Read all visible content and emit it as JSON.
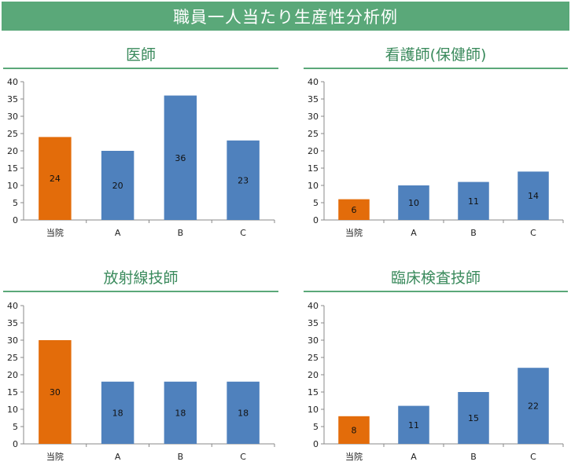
{
  "page_title": "職員一人当たり生産性分析例",
  "colors": {
    "own": "#e36c0a",
    "other": "#4f81bd",
    "accent": "#5aa879",
    "title_text": "#3a8a5c"
  },
  "chart_data": [
    {
      "type": "bar",
      "title": "医師",
      "categories": [
        "当院",
        "A",
        "B",
        "C"
      ],
      "values": [
        24,
        20,
        36,
        23
      ],
      "ylim": [
        0,
        40
      ],
      "yticks": [
        0,
        5,
        10,
        15,
        20,
        25,
        30,
        35,
        40
      ],
      "grid": false,
      "legend": "none"
    },
    {
      "type": "bar",
      "title": "看護師(保健師)",
      "categories": [
        "当院",
        "A",
        "B",
        "C"
      ],
      "values": [
        6,
        10,
        11,
        14
      ],
      "ylim": [
        0,
        40
      ],
      "yticks": [
        0,
        5,
        10,
        15,
        20,
        25,
        30,
        35,
        40
      ],
      "grid": false,
      "legend": "none"
    },
    {
      "type": "bar",
      "title": "放射線技師",
      "categories": [
        "当院",
        "A",
        "B",
        "C"
      ],
      "values": [
        30,
        18,
        18,
        18
      ],
      "ylim": [
        0,
        40
      ],
      "yticks": [
        0,
        5,
        10,
        15,
        20,
        25,
        30,
        35,
        40
      ],
      "grid": false,
      "legend": "none"
    },
    {
      "type": "bar",
      "title": "臨床検査技師",
      "categories": [
        "当院",
        "A",
        "B",
        "C"
      ],
      "values": [
        8,
        11,
        15,
        22
      ],
      "ylim": [
        0,
        40
      ],
      "yticks": [
        0,
        5,
        10,
        15,
        20,
        25,
        30,
        35,
        40
      ],
      "grid": false,
      "legend": "none"
    }
  ]
}
